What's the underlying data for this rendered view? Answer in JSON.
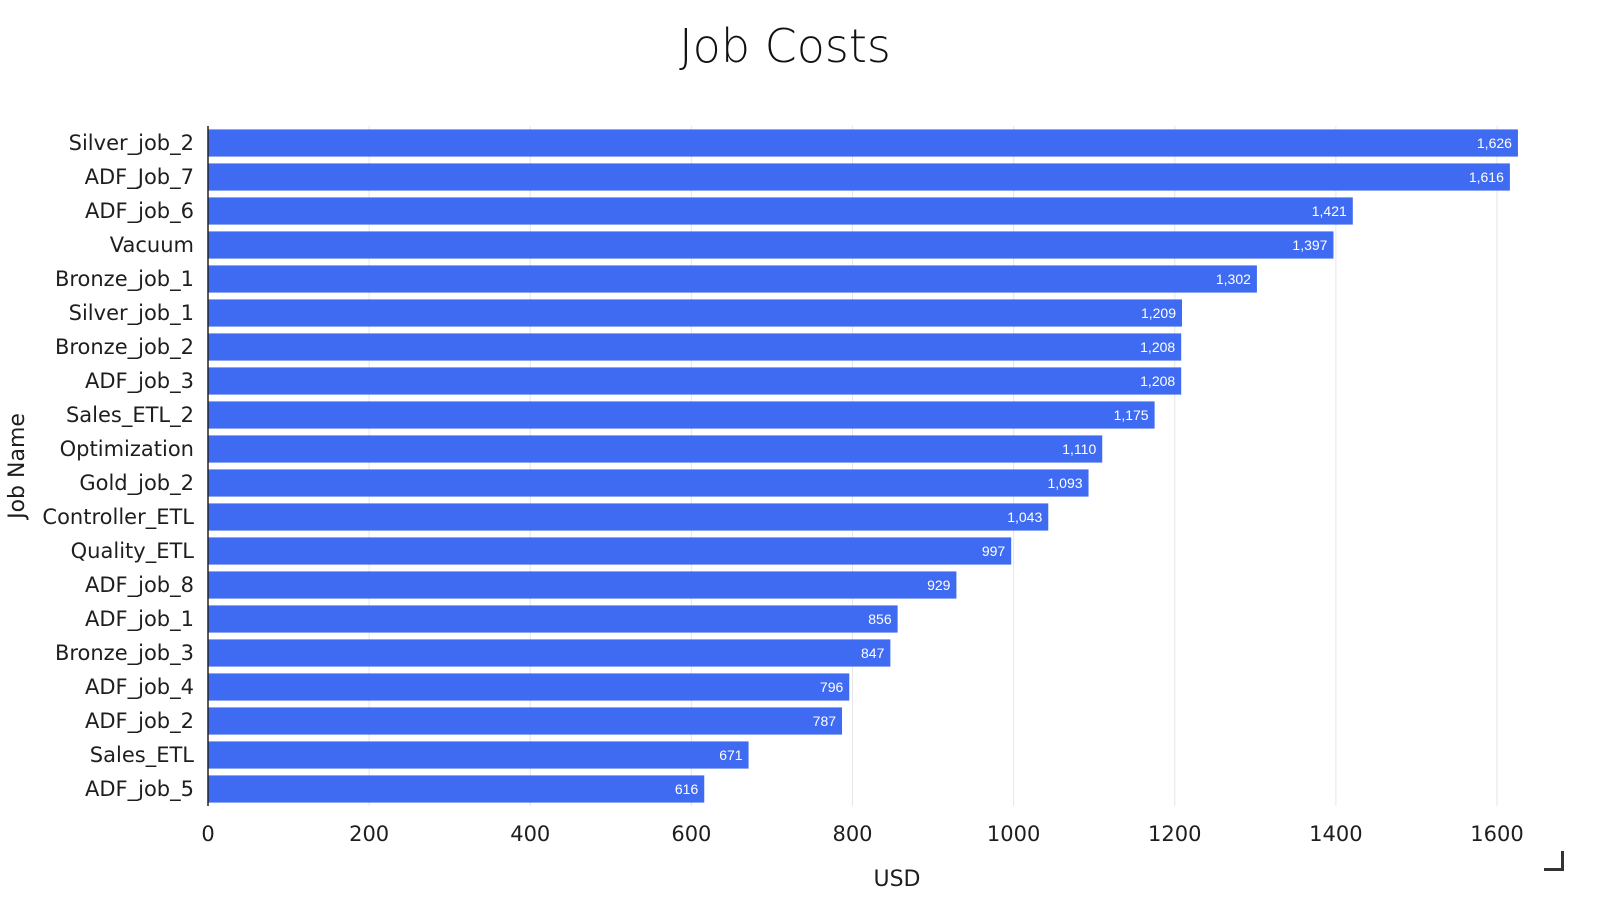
{
  "chart_data": {
    "type": "bar",
    "orientation": "horizontal",
    "title": "Job Costs",
    "xlabel": "USD",
    "ylabel": "Job Name",
    "xlim": [
      0,
      1600
    ],
    "xticks": [
      0,
      200,
      400,
      600,
      800,
      1000,
      1200,
      1400,
      1600
    ],
    "grid": true,
    "legend": "none",
    "bar_color": "#3f6bf2",
    "categories": [
      "Silver_job_2",
      "ADF_Job_7",
      "ADF_job_6",
      "Vacuum",
      "Bronze_job_1",
      "Silver_job_1",
      "Bronze_job_2",
      "ADF_job_3",
      "Sales_ETL_2",
      "Optimization",
      "Gold_job_2",
      "Controller_ETL",
      "Quality_ETL",
      "ADF_job_8",
      "ADF_job_1",
      "Bronze_job_3",
      "ADF_job_4",
      "ADF_job_2",
      "Sales_ETL",
      "ADF_job_5"
    ],
    "values": [
      1626,
      1616,
      1421,
      1397,
      1302,
      1209,
      1208,
      1208,
      1175,
      1110,
      1093,
      1043,
      997,
      929,
      856,
      847,
      796,
      787,
      671,
      616
    ],
    "data_labels": [
      "1,626",
      "1,616",
      "1,421",
      "1,397",
      "1,302",
      "1,209",
      "1,208",
      "1,208",
      "1,175",
      "1,110",
      "1,093",
      "1,043",
      "997",
      "929",
      "856",
      "847",
      "796",
      "787",
      "671",
      "616"
    ]
  }
}
